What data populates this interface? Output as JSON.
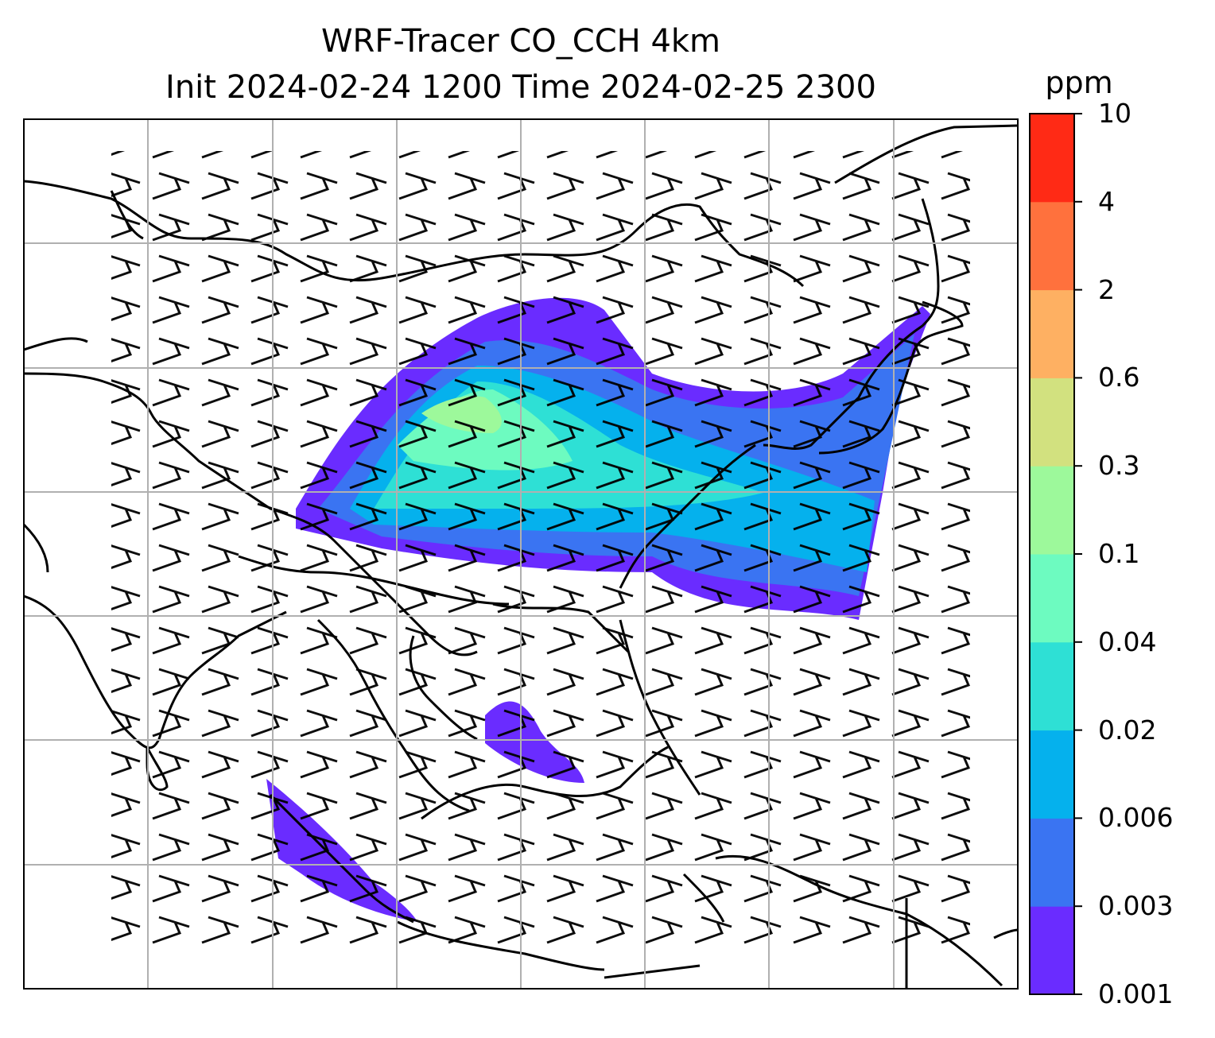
{
  "title": {
    "line1": "WRF-Tracer CO_CCH 4km",
    "line2": "Init 2024-02-24 1200 Time 2024-02-25 2300"
  },
  "colorbar": {
    "unit": "ppm",
    "ticks": [
      "10",
      "4",
      "2",
      "0.6",
      "0.3",
      "0.1",
      "0.04",
      "0.02",
      "0.006",
      "0.003",
      "0.001"
    ],
    "colors": [
      "#6a2cff",
      "#3a74f2",
      "#05b1ed",
      "#2ee0d5",
      "#6dfbc0",
      "#9df99b",
      "#d2e17f",
      "#feb062",
      "#ff713d",
      "#ff2a15"
    ]
  },
  "map": {
    "gridline_color": "#b0b0b0",
    "coastline_color": "#000000",
    "wind_barb_color": "#000000"
  }
}
